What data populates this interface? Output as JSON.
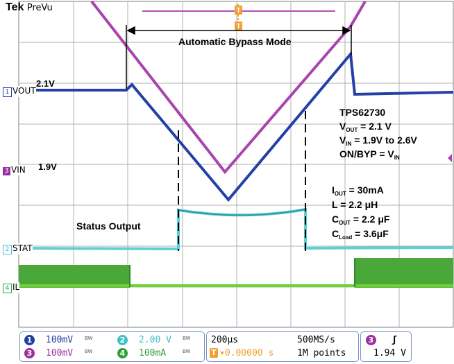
{
  "header": {
    "brand": "Tek",
    "mode": "PreVu"
  },
  "trigger_marker": {
    "top": "T",
    "t": "T"
  },
  "annotations": {
    "bypass_mode": "Automatic Bypass Mode",
    "status_output": "Status Output",
    "v21": "2.1V",
    "v19": "1.9V"
  },
  "specs": {
    "part": "TPS62730",
    "vout_pre": "V",
    "vout_sub": "OUT",
    "vout_post": " = 2.1 V",
    "vin_pre": "V",
    "vin_sub": "IN",
    "vin_post": " = 1.9V to 2.6V",
    "onbyp_pre": "ON/BYP = V",
    "onbyp_sub": "IN",
    "iout_pre": "I",
    "iout_sub": "OUT",
    "iout_post": " = 30mA",
    "l": "L = 2.2 μH",
    "cout_pre": "C",
    "cout_sub": "OUT",
    "cout_post": " = 2.2 μF",
    "cload_pre": "C",
    "cload_sub": "Load",
    "cload_post": " = 3.6μF"
  },
  "channels": [
    {
      "num": "1",
      "name": "VOUT",
      "color": "#1f3fa0",
      "scale": "100mV",
      "bw": "BW"
    },
    {
      "num": "2",
      "name": "STAT",
      "color": "#3fc0c8",
      "scale": "2.00 V",
      "bw": "BW"
    },
    {
      "num": "3",
      "name": "VIN",
      "color": "#9b2fa0",
      "scale": "100mV",
      "bw": "BW"
    },
    {
      "num": "4",
      "name": "IL",
      "color": "#2fa03a",
      "scale": "100mA",
      "bw": "BW"
    }
  ],
  "timebase": {
    "per_div": "200μs",
    "sample_rate": "500MS/s",
    "position": "▾0.00000 s",
    "record": "1M points"
  },
  "trigger": {
    "source": "3",
    "slope": "ʃ",
    "level": "1.94 V"
  }
}
